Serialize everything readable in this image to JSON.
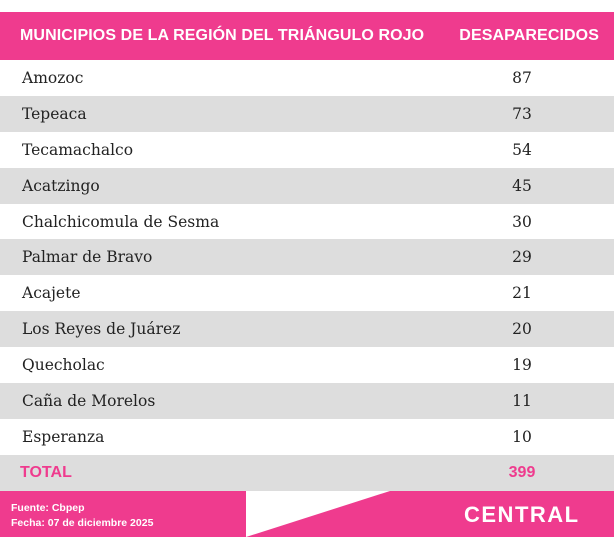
{
  "chart_data": {
    "type": "table",
    "columns": [
      "MUNICIPIOS DE LA REGIÓN DEL TRIÁNGULO ROJO",
      "DESAPARECIDOS"
    ],
    "rows": [
      {
        "municipio": "Amozoc",
        "desaparecidos": "87"
      },
      {
        "municipio": "Tepeaca",
        "desaparecidos": "73"
      },
      {
        "municipio": "Tecamachalco",
        "desaparecidos": "54"
      },
      {
        "municipio": "Acatzingo",
        "desaparecidos": "45"
      },
      {
        "municipio": "Chalchicomula de Sesma",
        "desaparecidos": "30"
      },
      {
        "municipio": "Palmar de Bravo",
        "desaparecidos": "29"
      },
      {
        "municipio": "Acajete",
        "desaparecidos": "21"
      },
      {
        "municipio": "Los Reyes de Juárez",
        "desaparecidos": "20"
      },
      {
        "municipio": "Quecholac",
        "desaparecidos": "19"
      },
      {
        "municipio": "Caña de Morelos",
        "desaparecidos": "11"
      },
      {
        "municipio": "Esperanza",
        "desaparecidos": "10"
      }
    ],
    "total": {
      "label": "TOTAL",
      "value": "399"
    }
  },
  "footer": {
    "source": "Fuente: Cbpep",
    "date": "Fecha: 07 de diciembre 2025",
    "logo": "CENTRAL"
  },
  "colors": {
    "accent": "#ef3b8e",
    "row_alt": "#dddddd",
    "footer_shape": "#ffffff"
  }
}
